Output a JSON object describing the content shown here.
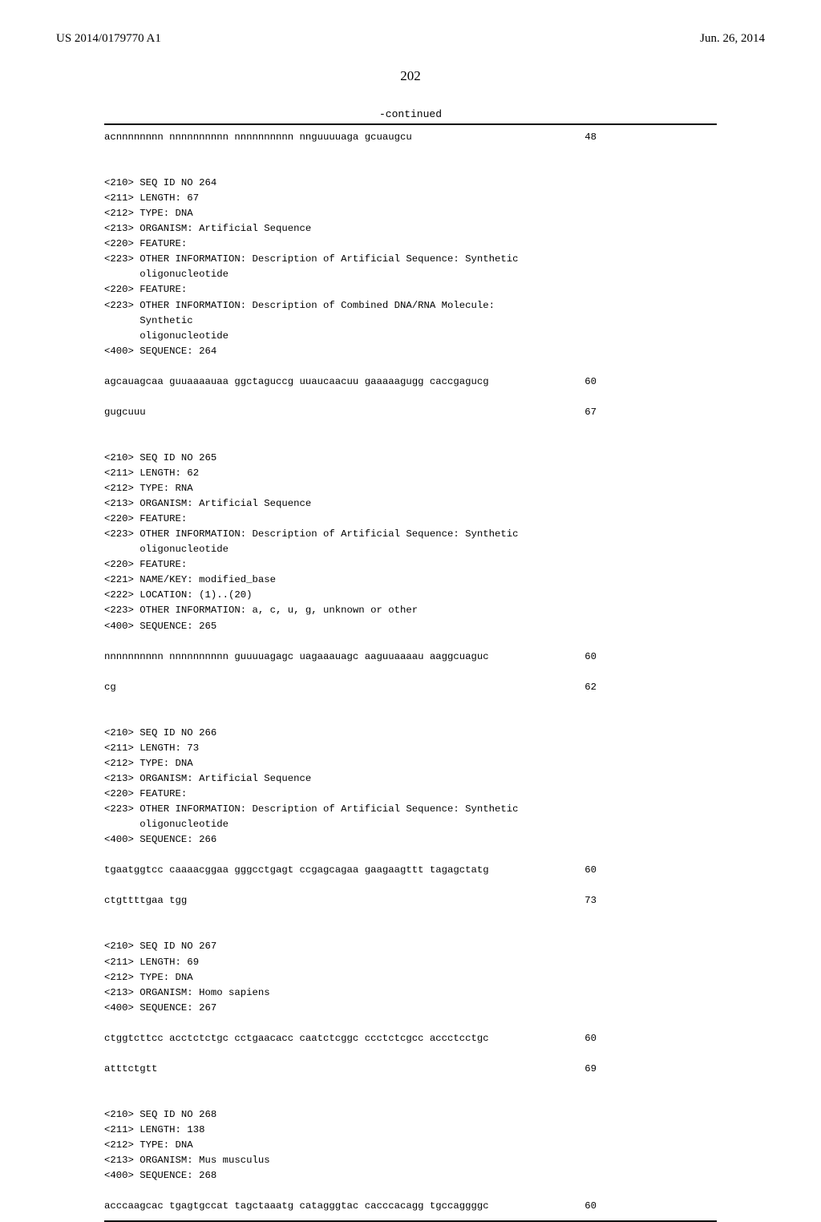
{
  "header": {
    "pub_number": "US 2014/0179770 A1",
    "pub_date": "Jun. 26, 2014"
  },
  "page_number": "202",
  "continued_label": "-continued",
  "seqs": [
    {
      "lines": [
        {
          "text": "acnnnnnnnn nnnnnnnnnn nnnnnnnnnn nnguuuuaga gcuaugcu",
          "num": "48"
        }
      ]
    },
    {
      "meta": [
        "<210> SEQ ID NO 264",
        "<211> LENGTH: 67",
        "<212> TYPE: DNA",
        "<213> ORGANISM: Artificial Sequence",
        "<220> FEATURE:",
        "<223> OTHER INFORMATION: Description of Artificial Sequence: Synthetic",
        "      oligonucleotide",
        "<220> FEATURE:",
        "<223> OTHER INFORMATION: Description of Combined DNA/RNA Molecule:",
        "      Synthetic",
        "      oligonucleotide",
        "",
        "<400> SEQUENCE: 264"
      ],
      "lines": [
        {
          "text": "agcauagcaa guuaaaauaa ggctaguccg uuaucaacuu gaaaaagugg caccgagucg",
          "num": "60"
        },
        {
          "text": "gugcuuu",
          "num": "67"
        }
      ]
    },
    {
      "meta": [
        "<210> SEQ ID NO 265",
        "<211> LENGTH: 62",
        "<212> TYPE: RNA",
        "<213> ORGANISM: Artificial Sequence",
        "<220> FEATURE:",
        "<223> OTHER INFORMATION: Description of Artificial Sequence: Synthetic",
        "      oligonucleotide",
        "<220> FEATURE:",
        "<221> NAME/KEY: modified_base",
        "<222> LOCATION: (1)..(20)",
        "<223> OTHER INFORMATION: a, c, u, g, unknown or other",
        "",
        "<400> SEQUENCE: 265"
      ],
      "lines": [
        {
          "text": "nnnnnnnnnn nnnnnnnnnn guuuuagagc uagaaauagc aaguuaaaau aaggcuaguc",
          "num": "60"
        },
        {
          "text": "cg",
          "num": "62"
        }
      ]
    },
    {
      "meta": [
        "<210> SEQ ID NO 266",
        "<211> LENGTH: 73",
        "<212> TYPE: DNA",
        "<213> ORGANISM: Artificial Sequence",
        "<220> FEATURE:",
        "<223> OTHER INFORMATION: Description of Artificial Sequence: Synthetic",
        "      oligonucleotide",
        "",
        "<400> SEQUENCE: 266"
      ],
      "lines": [
        {
          "text": "tgaatggtcc caaaacggaa gggcctgagt ccgagcagaa gaagaagttt tagagctatg",
          "num": "60"
        },
        {
          "text": "ctgttttgaa tgg",
          "num": "73"
        }
      ]
    },
    {
      "meta": [
        "<210> SEQ ID NO 267",
        "<211> LENGTH: 69",
        "<212> TYPE: DNA",
        "<213> ORGANISM: Homo sapiens",
        "",
        "<400> SEQUENCE: 267"
      ],
      "lines": [
        {
          "text": "ctggtcttcc acctctctgc cctgaacacc caatctcggc ccctctcgcc accctcctgc",
          "num": "60"
        },
        {
          "text": "atttctgtt",
          "num": "69"
        }
      ]
    },
    {
      "meta": [
        "<210> SEQ ID NO 268",
        "<211> LENGTH: 138",
        "<212> TYPE: DNA",
        "<213> ORGANISM: Mus musculus",
        "",
        "<400> SEQUENCE: 268"
      ],
      "lines": [
        {
          "text": "acccaagcac tgagtgccat tagctaaatg catagggtac cacccacagg tgccaggggc",
          "num": "60"
        }
      ]
    }
  ]
}
